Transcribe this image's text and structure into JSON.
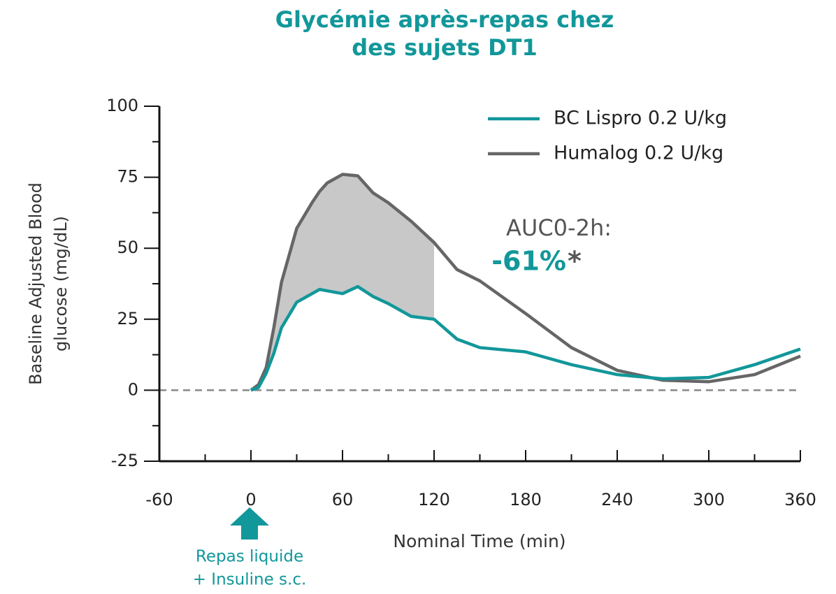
{
  "chart_data": {
    "type": "line",
    "title": [
      "Glycémie après-repas chez",
      "des sujets DT1"
    ],
    "xlabel": "Nominal Time (min)",
    "ylabel": [
      "Baseline Adjusted Blood",
      "glucose (mg/dL)"
    ],
    "x": [
      0,
      5,
      10,
      15,
      20,
      30,
      40,
      45,
      50,
      60,
      70,
      80,
      90,
      105,
      120,
      135,
      150,
      180,
      210,
      240,
      270,
      300,
      330,
      360
    ],
    "series": [
      {
        "name": "BC Lispro 0.2 U/kg",
        "color": "#12979a",
        "values": [
          0,
          1,
          6,
          13,
          22,
          31,
          34,
          35.5,
          35,
          34,
          36.5,
          33,
          30.5,
          26,
          25,
          18,
          15,
          13.5,
          9,
          5.5,
          4,
          4.5,
          9,
          14.5
        ]
      },
      {
        "name": "Humalog 0.2 U/kg",
        "color": "#666666",
        "values": [
          0,
          2,
          8,
          22,
          38,
          57,
          66,
          70,
          73,
          76,
          75.5,
          69.5,
          66,
          59.5,
          52,
          42.5,
          38.5,
          27,
          15,
          7,
          3.5,
          3,
          5.5,
          12
        ]
      }
    ],
    "xlim": [
      -60,
      360
    ],
    "xticks": [
      -60,
      0,
      60,
      120,
      180,
      240,
      300,
      360
    ],
    "ylim": [
      -25,
      100
    ],
    "yticks": [
      -25,
      0,
      25,
      50,
      75,
      100
    ],
    "zero_line": true,
    "shade_range": [
      0,
      120
    ],
    "shade_color": "#c8c8c8",
    "legend": "upper right",
    "annotations": {
      "auc_label": "AUC0-2h:",
      "auc_value": "-61%",
      "auc_star": "*",
      "meal": [
        "Repas liquide",
        "+ Insuline s.c."
      ]
    }
  }
}
